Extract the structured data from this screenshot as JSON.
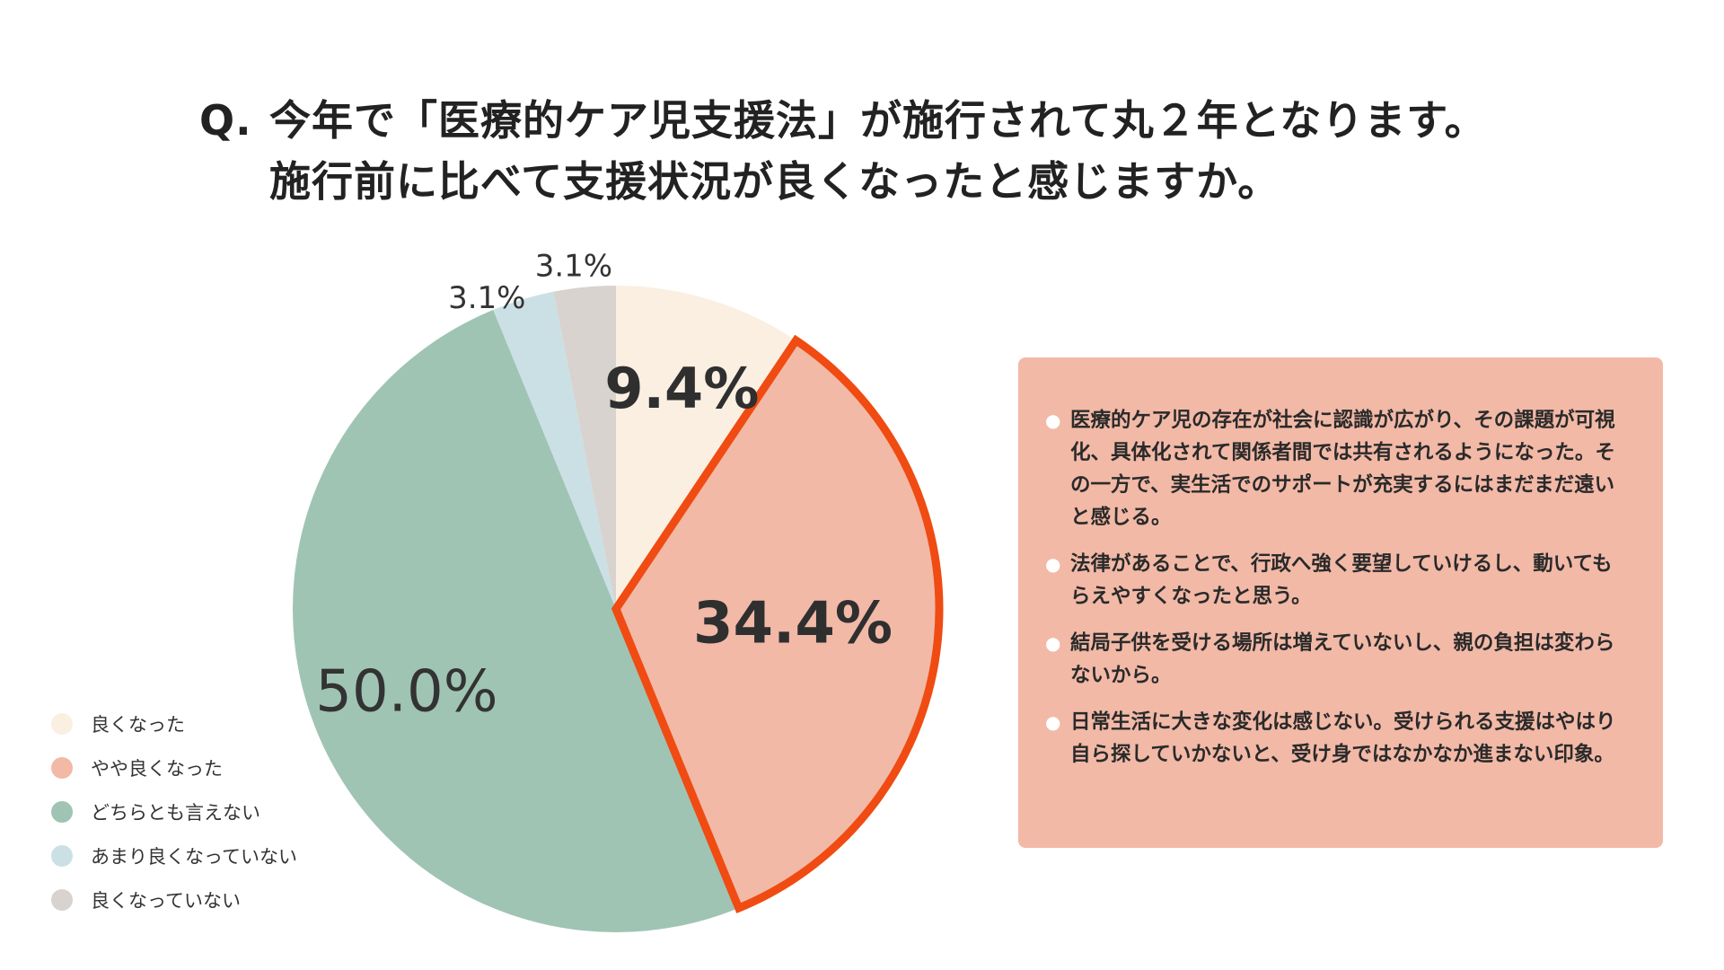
{
  "title": {
    "prefix": "Q.",
    "line1": "今年で「医療的ケア児支援法」が施行されて丸２年となります。",
    "line2": "施行前に比べて支援状況が良くなったと感じますか。"
  },
  "chart_data": {
    "type": "pie",
    "start_angle_deg": 0,
    "direction": "clockwise",
    "highlighted": "やや良くなった",
    "highlight_color": "#f04b12",
    "slices": [
      {
        "label": "良くなった",
        "value": 9.4,
        "display": "9.4%",
        "color": "#fbefe2"
      },
      {
        "label": "やや良くなった",
        "value": 34.4,
        "display": "34.4%",
        "color": "#f2b9a7"
      },
      {
        "label": "どちらとも言えない",
        "value": 50.0,
        "display": "50.0%",
        "color": "#9fc4b4"
      },
      {
        "label": "あまり良くなっていない",
        "value": 3.1,
        "display": "3.1%",
        "color": "#cbe0e5"
      },
      {
        "label": "良くなっていない",
        "value": 3.1,
        "display": "3.1%",
        "color": "#d8d3ce"
      }
    ]
  },
  "legend": {
    "items": [
      {
        "label": "良くなった",
        "color": "#fbefe2"
      },
      {
        "label": "やや良くなった",
        "color": "#f2b9a7"
      },
      {
        "label": "どちらとも言えない",
        "color": "#9fc4b4"
      },
      {
        "label": "あまり良くなっていない",
        "color": "#cbe0e5"
      },
      {
        "label": "良くなっていない",
        "color": "#d8d3ce"
      }
    ]
  },
  "comments": {
    "background_color": "#f2b9a7",
    "bullet": "●",
    "items": [
      "医療的ケア児の存在が社会に認識が広がり、その課題が可視化、具体化されて関係者間では共有されるようになった。その一方で、実生活でのサポートが充実するにはまだまだ遠いと感じる。",
      "法律があることで、行政へ強く要望していけるし、動いてもらえやすくなったと思う。",
      "結局子供を受ける場所は増えていないし、親の負担は変わらないから。",
      "日常生活に大きな変化は感じない。受けられる支援はやはり自ら探していかないと、受け身ではなかなか進まない印象。"
    ]
  }
}
